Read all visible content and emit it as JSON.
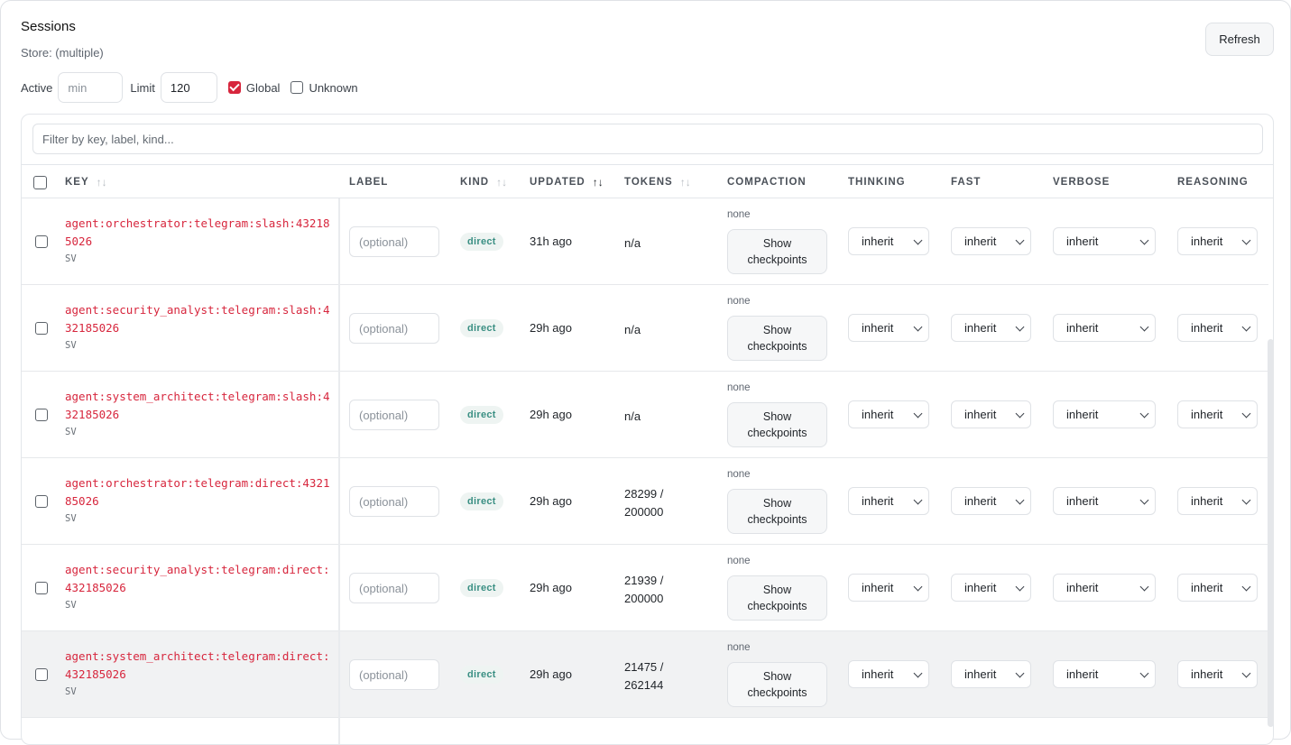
{
  "header": {
    "title": "Sessions",
    "store_label": "Store: (multiple)",
    "refresh_label": "Refresh"
  },
  "filters": {
    "active_label": "Active",
    "active_placeholder": "min",
    "limit_label": "Limit",
    "limit_value": "120",
    "global_label": "Global",
    "global_checked": true,
    "unknown_label": "Unknown",
    "unknown_checked": false
  },
  "search": {
    "placeholder": "Filter by key, label, kind..."
  },
  "columns": {
    "key": "KEY",
    "label": "LABEL",
    "kind": "KIND",
    "updated": "UPDATED",
    "tokens": "TOKENS",
    "compaction": "COMPACTION",
    "thinking": "THINKING",
    "fast": "FAST",
    "verbose": "VERBOSE",
    "reasoning": "REASONING",
    "sort_icon": "↑↓",
    "sort_active_icon": "↑↓"
  },
  "label_placeholder": "(optional)",
  "rows": [
    {
      "key": "agent:orchestrator:telegram:slash:432185026",
      "sub": "SV",
      "kind": "direct",
      "updated": "31h ago",
      "tokens": "n/a",
      "compaction": "none",
      "show_label": "Show checkpoints",
      "thinking": "inherit",
      "fast": "inherit",
      "verbose": "inherit",
      "reasoning": "inherit",
      "highlighted": false
    },
    {
      "key": "agent:security_analyst:telegram:slash:432185026",
      "sub": "SV",
      "kind": "direct",
      "updated": "29h ago",
      "tokens": "n/a",
      "compaction": "none",
      "show_label": "Show checkpoints",
      "thinking": "inherit",
      "fast": "inherit",
      "verbose": "inherit",
      "reasoning": "inherit",
      "highlighted": false
    },
    {
      "key": "agent:system_architect:telegram:slash:432185026",
      "sub": "SV",
      "kind": "direct",
      "updated": "29h ago",
      "tokens": "n/a",
      "compaction": "none",
      "show_label": "Show checkpoints",
      "thinking": "inherit",
      "fast": "inherit",
      "verbose": "inherit",
      "reasoning": "inherit",
      "highlighted": false
    },
    {
      "key": "agent:orchestrator:telegram:direct:432185026",
      "sub": "SV",
      "kind": "direct",
      "updated": "29h ago",
      "tokens": "28299 / 200000",
      "compaction": "none",
      "show_label": "Show checkpoints",
      "thinking": "inherit",
      "fast": "inherit",
      "verbose": "inherit",
      "reasoning": "inherit",
      "highlighted": false
    },
    {
      "key": "agent:security_analyst:telegram:direct:432185026",
      "sub": "SV",
      "kind": "direct",
      "updated": "29h ago",
      "tokens": "21939 / 200000",
      "compaction": "none",
      "show_label": "Show checkpoints",
      "thinking": "inherit",
      "fast": "inherit",
      "verbose": "inherit",
      "reasoning": "inherit",
      "highlighted": false
    },
    {
      "key": "agent:system_architect:telegram:direct:432185026",
      "sub": "SV",
      "kind": "direct",
      "updated": "29h ago",
      "tokens": "21475 / 262144",
      "compaction": "none",
      "show_label": "Show checkpoints",
      "thinking": "inherit",
      "fast": "inherit",
      "verbose": "inherit",
      "reasoning": "inherit",
      "highlighted": true
    }
  ],
  "colors": {
    "accent": "#d7263d",
    "kind_badge_text": "#3a8f83",
    "kind_badge_bg": "#eef4f2"
  }
}
